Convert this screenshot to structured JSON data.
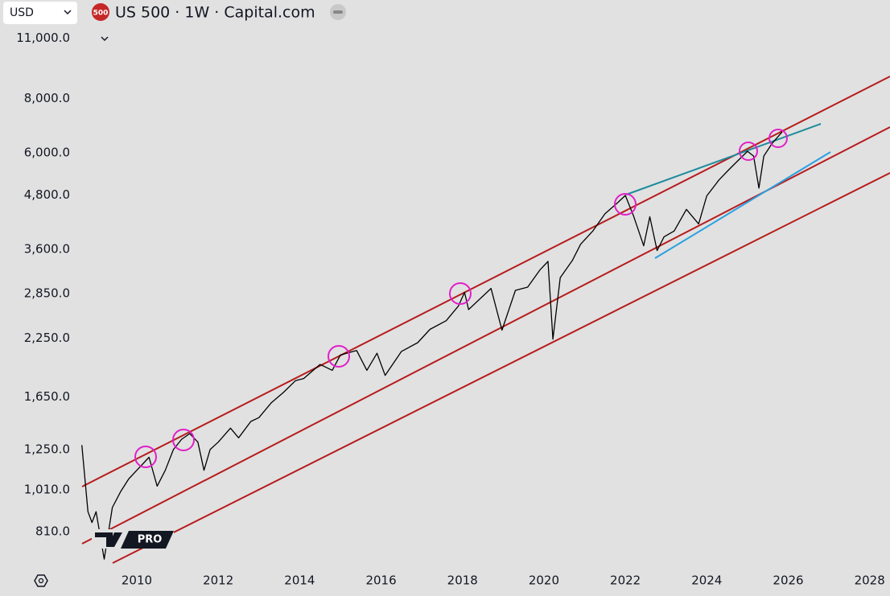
{
  "ui": {
    "currency": "USD",
    "symbol_badge": "500",
    "logo": "PRO"
  },
  "chart_data": {
    "type": "line",
    "title": "US 500 · 1W · Capital.com",
    "log_scale": true,
    "grid": false,
    "x": [
      2008.65,
      2008.8,
      2008.9,
      2009.0,
      2009.2,
      2009.4,
      2009.6,
      2009.8,
      2010.0,
      2010.3,
      2010.5,
      2010.7,
      2010.9,
      2011.1,
      2011.3,
      2011.5,
      2011.65,
      2011.8,
      2012.0,
      2012.3,
      2012.5,
      2012.8,
      2013.0,
      2013.3,
      2013.6,
      2013.9,
      2014.1,
      2014.5,
      2014.8,
      2015.0,
      2015.4,
      2015.65,
      2015.9,
      2016.1,
      2016.5,
      2016.9,
      2017.2,
      2017.6,
      2017.9,
      2018.05,
      2018.15,
      2018.7,
      2018.97,
      2019.3,
      2019.6,
      2019.9,
      2020.1,
      2020.22,
      2020.4,
      2020.7,
      2020.9,
      2021.2,
      2021.5,
      2021.8,
      2022.0,
      2022.2,
      2022.45,
      2022.6,
      2022.78,
      2022.95,
      2023.2,
      2023.5,
      2023.8,
      2024.0,
      2024.3,
      2024.55,
      2024.8,
      2025.0,
      2025.15,
      2025.28,
      2025.4,
      2025.6,
      2025.85
    ],
    "series": [
      {
        "name": "US 500",
        "color": "#000000",
        "values": [
          1280,
          900,
          850,
          900,
          700,
          920,
          1000,
          1070,
          1120,
          1200,
          1030,
          1120,
          1250,
          1320,
          1360,
          1300,
          1120,
          1250,
          1300,
          1400,
          1330,
          1450,
          1480,
          1600,
          1690,
          1800,
          1820,
          1960,
          1900,
          2060,
          2110,
          1900,
          2080,
          1850,
          2100,
          2200,
          2360,
          2470,
          2670,
          2870,
          2620,
          2930,
          2350,
          2900,
          2950,
          3230,
          3380,
          2240,
          3100,
          3400,
          3700,
          3970,
          4350,
          4600,
          4790,
          4300,
          3670,
          4280,
          3580,
          3850,
          3970,
          4450,
          4120,
          4780,
          5200,
          5500,
          5800,
          6050,
          5900,
          4980,
          5900,
          6300,
          6700
        ]
      }
    ],
    "xlim": [
      2006.64,
      2028.5
    ],
    "xticks": [
      2010,
      2012,
      2014,
      2016,
      2018,
      2020,
      2022,
      2024,
      2026,
      2028
    ],
    "ylim": [
      686,
      11850
    ],
    "yticks": [
      {
        "value": 810,
        "label": "810.0"
      },
      {
        "value": 1010,
        "label": "1,010.0"
      },
      {
        "value": 1250,
        "label": "1,250.0"
      },
      {
        "value": 1650,
        "label": "1,650.0"
      },
      {
        "value": 2250,
        "label": "2,250.0"
      },
      {
        "value": 2850,
        "label": "2,850.0"
      },
      {
        "value": 3600,
        "label": "3,600.0"
      },
      {
        "value": 4800,
        "label": "4,800.0"
      },
      {
        "value": 6000,
        "label": "6,000.0"
      },
      {
        "value": 8000,
        "label": "8,000.0"
      },
      {
        "value": 11000,
        "label": "11,000.0"
      }
    ]
  }
}
